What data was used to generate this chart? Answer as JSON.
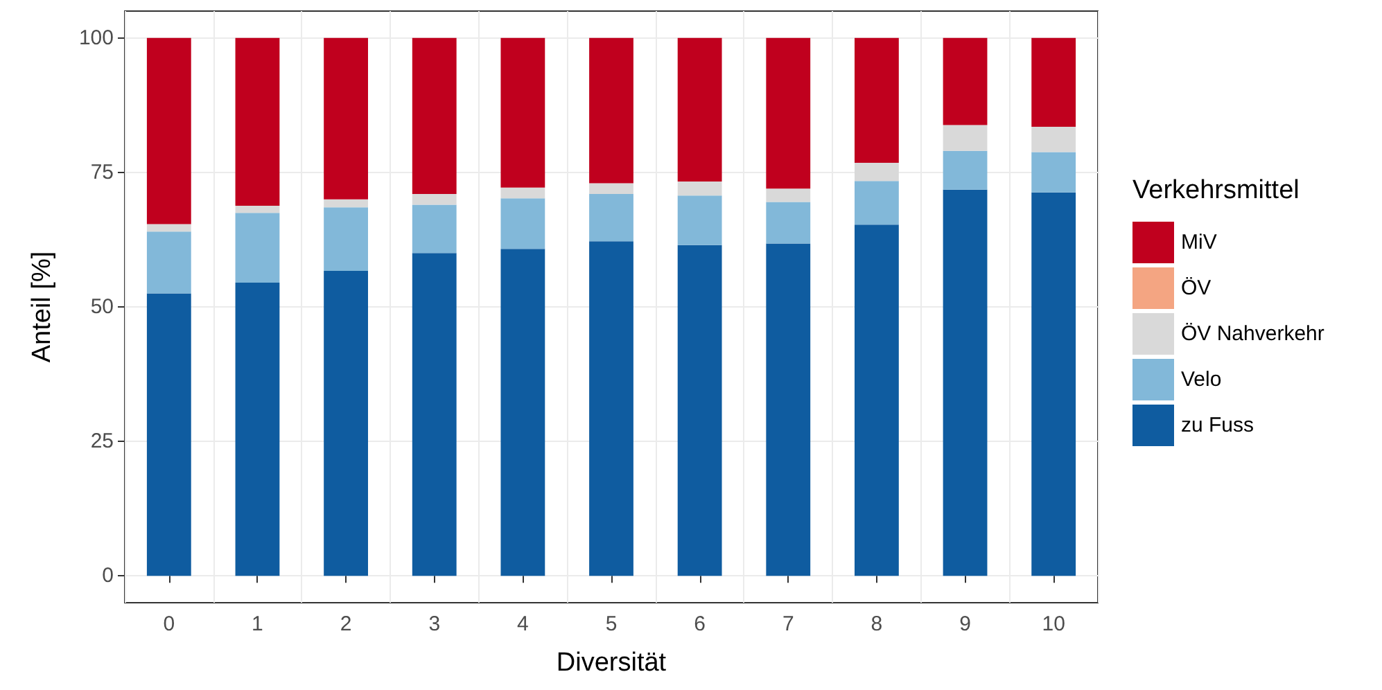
{
  "chart_data": {
    "type": "bar",
    "stacked": true,
    "xlabel": "Diversität",
    "ylabel": "Anteil [%]",
    "legend_title": "Verkehrsmittel",
    "categories": [
      "0",
      "1",
      "2",
      "3",
      "4",
      "5",
      "6",
      "7",
      "8",
      "9",
      "10"
    ],
    "series": [
      {
        "name": "zu Fuss",
        "color": "#0f5ca0",
        "values": [
          52.5,
          54.5,
          56.7,
          60,
          60.8,
          62.2,
          61.5,
          61.8,
          65.3,
          71.8,
          71.3
        ]
      },
      {
        "name": "Velo",
        "color": "#82b8d9",
        "values": [
          11.5,
          13,
          11.8,
          9,
          9.4,
          8.8,
          9.2,
          7.7,
          8.1,
          7.2,
          7.5
        ]
      },
      {
        "name": "ÖV Nahverkehr",
        "color": "#d9d9d9",
        "values": [
          1.4,
          1.3,
          1.5,
          2,
          2,
          2,
          2.6,
          2.5,
          3.4,
          4.8,
          4.7
        ]
      },
      {
        "name": "ÖV",
        "color": "#f4a582",
        "values": [
          0,
          0,
          0,
          0,
          0,
          0,
          0,
          0,
          0,
          0,
          0
        ]
      },
      {
        "name": "MiV",
        "color": "#c0001e",
        "values": [
          34.6,
          31.2,
          30,
          29,
          27.8,
          27,
          26.7,
          28,
          23.2,
          16.2,
          16.5
        ]
      }
    ],
    "ylim": [
      -5,
      105
    ],
    "yticks": [
      0,
      25,
      50,
      75,
      100
    ],
    "grid": true,
    "legend": "right"
  }
}
